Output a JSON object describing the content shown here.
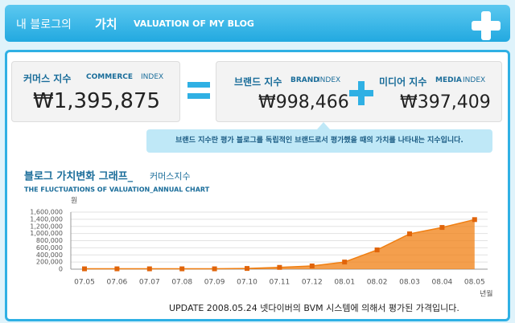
{
  "header": {
    "title_korean": "내 블로그의",
    "title_bold": "가치",
    "title_english": "VALUATION OF MY BLOG"
  },
  "commerce": {
    "label": "커머스 지수",
    "label_en_bold": "COMMERCE",
    "label_en": "INDEX",
    "value": "₩1,395,875"
  },
  "brand": {
    "label": "브랜드 지수",
    "label_en_bold": "BRAND",
    "label_en": "INDEX",
    "value": "₩998,466"
  },
  "media": {
    "label": "미디어 지수",
    "label_en_bold": "MEDIA",
    "label_en": "INDEX",
    "value": "₩397,409"
  },
  "tooltip": "브랜드 지수란 평가 블로그를 독립적인 브랜드로서 평가했을 때의 가치를 나타내는 지수입니다.",
  "chart_data": {
    "type": "area",
    "title": "블로그 가치변화 그래프_",
    "title_suffix": "커머스지수",
    "subtitle": "THE FLUCTUATIONS OF VALUATION_ANNUAL CHART",
    "y_label": "원",
    "x_label": "년월",
    "categories": [
      "07.05",
      "07.06",
      "07.07",
      "07.08",
      "07.09",
      "07.10",
      "07.11",
      "07.12",
      "08.01",
      "08.02",
      "08.03",
      "08.04",
      "08.05"
    ],
    "values": [
      10000,
      10000,
      10000,
      10000,
      10000,
      20000,
      50000,
      90000,
      200000,
      540000,
      990000,
      1170000,
      1390000
    ],
    "color": "#f07f12",
    "grid": true,
    "ylim": [
      0,
      1600000
    ],
    "yticks": [
      0,
      {
        "value": 200000,
        "label": "200,000"
      },
      {
        "value": 400000,
        "label": "400,000"
      },
      {
        "value": 600000,
        "label": "600,000"
      },
      {
        "value": 800000,
        "label": "800,000"
      },
      {
        "value": 1000000,
        "label": "1,000,000"
      },
      {
        "value": 1200000,
        "label": "1,200,000"
      },
      {
        "value": 1400000,
        "label": "1,400,000"
      },
      {
        "value": 1600000,
        "label": "1,600,000"
      }
    ]
  },
  "footer": "UPDATE 2008.05.24 넷다이버의 BVM 시스템에 의해서 평가된 가격입니다."
}
